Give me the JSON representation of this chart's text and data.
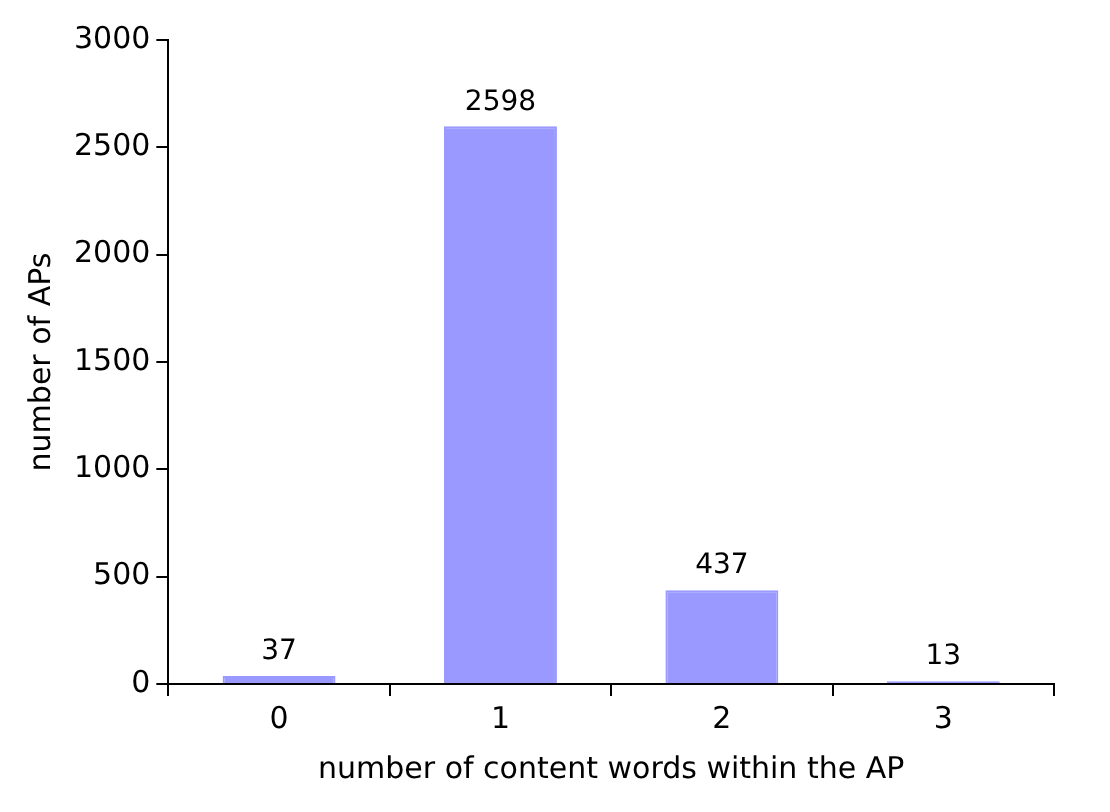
{
  "chart_data": {
    "type": "bar",
    "xlabel": "number of content words within the AP",
    "ylabel": "number of APs",
    "categories": [
      "0",
      "1",
      "2",
      "3"
    ],
    "values": [
      37,
      2598,
      437,
      13
    ],
    "color": "#9999ff",
    "ylim": [
      0,
      3000
    ],
    "yticks": [
      0,
      500,
      1000,
      1500,
      2000,
      2500,
      3000
    ],
    "data_labels": true,
    "grid": false,
    "legend": false
  }
}
